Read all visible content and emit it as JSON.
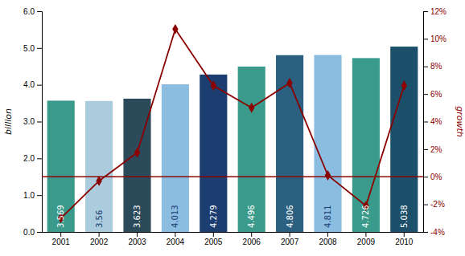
{
  "chart_data": {
    "type": "bar",
    "categories": [
      "2001",
      "2002",
      "2003",
      "2004",
      "2005",
      "2006",
      "2007",
      "2008",
      "2009",
      "2010"
    ],
    "series": [
      {
        "type": "bar",
        "values": [
          3.569,
          3.56,
          3.623,
          4.013,
          4.279,
          4.496,
          4.806,
          4.811,
          4.726,
          5.038
        ],
        "colors": [
          "#3a9b8c",
          "#aaccdd",
          "#2b4a5a",
          "#8bbde0",
          "#1b3d70",
          "#3a9b8c",
          "#2b6080",
          "#8bbde0",
          "#3a9b8c",
          "#1b4f6a"
        ],
        "data_labels": true
      },
      {
        "type": "line",
        "axis": "y2",
        "color": "#8b0000",
        "marker": "diamond",
        "values": [
          -3.0,
          -0.3,
          1.75,
          10.7,
          6.6,
          5.0,
          6.8,
          0.1,
          -2.1,
          6.6
        ]
      }
    ],
    "ylabel": "billion",
    "y2label": "growth",
    "ylim": [
      0.0,
      6.0
    ],
    "yticks": [
      {
        "value": 0,
        "label": "0.0"
      },
      {
        "value": 1,
        "label": "1.0"
      },
      {
        "value": 2,
        "label": "2.0"
      },
      {
        "value": 3,
        "label": "3.0"
      },
      {
        "value": 4,
        "label": "4.0"
      },
      {
        "value": 5,
        "label": "5.0"
      },
      {
        "value": 6,
        "label": "6.0"
      }
    ],
    "y2lim": [
      -4,
      12
    ],
    "y2ticks": [
      {
        "value": -4,
        "label": "-4%"
      },
      {
        "value": -2,
        "label": "-2%"
      },
      {
        "value": 0,
        "label": "0%"
      },
      {
        "value": 2,
        "label": "2%"
      },
      {
        "value": 4,
        "label": "4%"
      },
      {
        "value": 6,
        "label": "6%"
      },
      {
        "value": 8,
        "label": "8%"
      },
      {
        "value": 10,
        "label": "10%"
      },
      {
        "value": 12,
        "label": "12%"
      }
    ],
    "hline_y2": 0,
    "grid": false
  }
}
